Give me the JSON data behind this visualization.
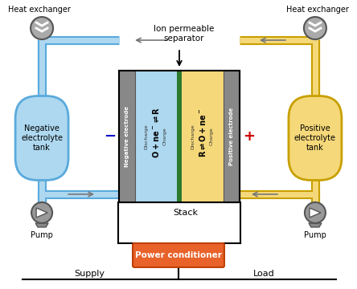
{
  "bg_color": "#ffffff",
  "blue_color": "#add8f0",
  "blue_border": "#5aaadc",
  "yellow_color": "#f5d87a",
  "yellow_border": "#c8a000",
  "gray_electrode": "#888888",
  "green_membrane": "#2d7a2d",
  "orange_color": "#e8622a",
  "orange_border": "#c04000",
  "neg_tank_text": "Negative\nelectrolyte\ntank",
  "pos_tank_text": "Positive\nelectrolyte\ntank",
  "neg_electrode_text": "Negative electrode",
  "pos_electrode_text": "Positive electrode",
  "stack_label": "Stack",
  "supply_label": "Supply",
  "load_label": "Load",
  "pump_label": "Pump",
  "heat_exchanger_label": "Heat exchanger",
  "ion_separator_label": "Ion permeable\nseparator",
  "power_conditioner_label": "Power conditioner",
  "minus_color": "#0000cc",
  "plus_color": "#cc0000",
  "arrow_color": "#777777",
  "wire_color": "#000000",
  "tube_lw_outer": 8,
  "tube_lw_inner": 5
}
